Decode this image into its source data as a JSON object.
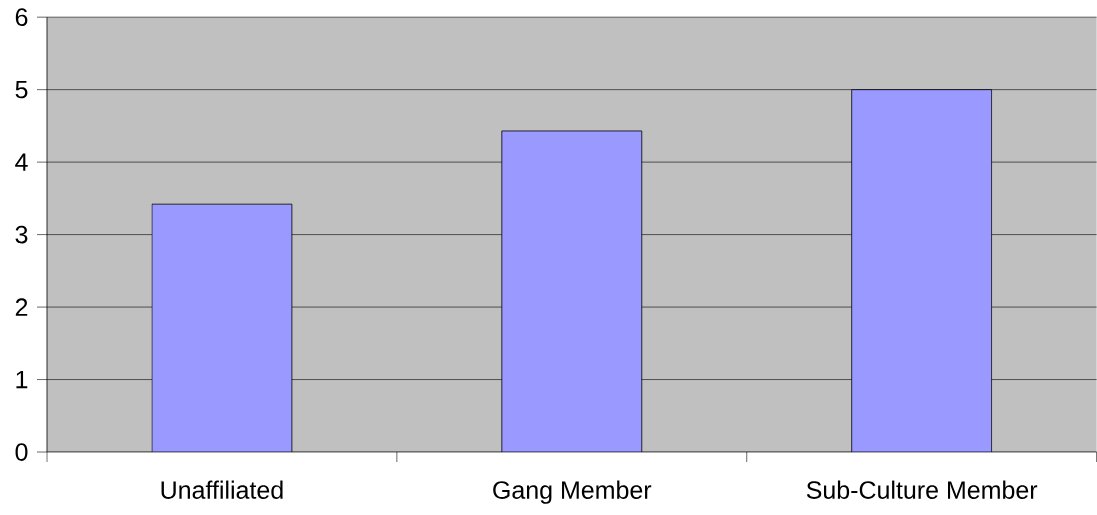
{
  "chart_data": {
    "type": "bar",
    "categories": [
      "Unaffiliated",
      "Gang Member",
      "Sub-Culture Member"
    ],
    "values": [
      3.42,
      4.43,
      5.0
    ],
    "color": "#9999ff",
    "ylim": [
      0,
      6
    ],
    "yticks": [
      0,
      1,
      2,
      3,
      4,
      5,
      6
    ],
    "grid": "y"
  }
}
